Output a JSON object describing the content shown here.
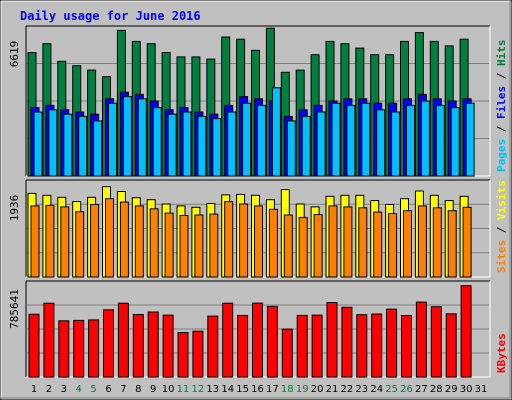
{
  "title": "Daily usage for June 2016",
  "colors": {
    "background": "#c0c0c0",
    "title": "#0000ff",
    "hits": "#008040",
    "files": "#0000ff",
    "pages": "#00c0ff",
    "visits": "#ffff00",
    "sites": "#ff8000",
    "kbytes": "#ff0000",
    "weekend_label": "#008040",
    "weekday_label": "#000000"
  },
  "chart_data": [
    {
      "type": "bar",
      "title": "Daily usage for June 2016",
      "ymax_label": "6619",
      "legend": [
        "Pages",
        "Files",
        "Hits"
      ],
      "categories": [
        "1",
        "2",
        "3",
        "4",
        "5",
        "6",
        "7",
        "8",
        "9",
        "10",
        "11",
        "12",
        "13",
        "14",
        "15",
        "16",
        "17",
        "18",
        "19",
        "20",
        "21",
        "22",
        "23",
        "24",
        "25",
        "26",
        "27",
        "28",
        "29",
        "30",
        "31"
      ],
      "weekend_days": [
        "4",
        "5",
        "11",
        "12",
        "18",
        "19",
        "25",
        "26"
      ],
      "ylim": [
        0,
        6619
      ],
      "series": [
        {
          "name": "Hits",
          "values": [
            5600,
            6000,
            5200,
            5000,
            4800,
            4500,
            6600,
            6100,
            6000,
            5600,
            5400,
            5400,
            5300,
            6300,
            6200,
            5700,
            6700,
            4700,
            4800,
            5500,
            6100,
            6000,
            5800,
            5500,
            5500,
            6100,
            6500,
            6100,
            5900,
            6200,
            null
          ]
        },
        {
          "name": "Files",
          "values": [
            3100,
            3200,
            3000,
            2900,
            2800,
            3500,
            3800,
            3700,
            3400,
            3000,
            3100,
            2900,
            2800,
            3200,
            3600,
            3500,
            3400,
            2700,
            3000,
            3200,
            3400,
            3500,
            3500,
            3300,
            3300,
            3500,
            3700,
            3500,
            3400,
            3500,
            null
          ]
        },
        {
          "name": "Pages",
          "values": [
            2900,
            3000,
            2800,
            2700,
            2500,
            3300,
            3600,
            3500,
            3100,
            2800,
            2900,
            2700,
            2600,
            2900,
            3300,
            3200,
            4000,
            2500,
            2700,
            2900,
            3300,
            3200,
            3300,
            3000,
            2900,
            3200,
            3400,
            3200,
            3100,
            3300,
            null
          ]
        }
      ]
    },
    {
      "type": "bar",
      "ymax_label": "1936",
      "legend": [
        "Sites",
        "Visits"
      ],
      "categories": [
        "1",
        "2",
        "3",
        "4",
        "5",
        "6",
        "7",
        "8",
        "9",
        "10",
        "11",
        "12",
        "13",
        "14",
        "15",
        "16",
        "17",
        "18",
        "19",
        "20",
        "21",
        "22",
        "23",
        "24",
        "25",
        "26",
        "27",
        "28",
        "29",
        "30",
        "31"
      ],
      "ylim": [
        0,
        1936
      ],
      "series": [
        {
          "name": "Visits",
          "values": [
            1740,
            1700,
            1660,
            1570,
            1660,
            1880,
            1780,
            1650,
            1610,
            1520,
            1480,
            1450,
            1530,
            1710,
            1720,
            1700,
            1610,
            1820,
            1520,
            1460,
            1680,
            1700,
            1700,
            1590,
            1510,
            1630,
            1790,
            1700,
            1590,
            1680,
            null
          ]
        },
        {
          "name": "Sites",
          "values": [
            1480,
            1490,
            1460,
            1360,
            1510,
            1630,
            1560,
            1480,
            1420,
            1330,
            1280,
            1290,
            1310,
            1570,
            1520,
            1480,
            1410,
            1290,
            1240,
            1300,
            1480,
            1460,
            1440,
            1350,
            1320,
            1380,
            1480,
            1440,
            1380,
            1450,
            null
          ]
        }
      ]
    },
    {
      "type": "bar",
      "ymax_label": "785641",
      "legend": [
        "KBytes"
      ],
      "categories": [
        "1",
        "2",
        "3",
        "4",
        "5",
        "6",
        "7",
        "8",
        "9",
        "10",
        "11",
        "12",
        "13",
        "14",
        "15",
        "16",
        "17",
        "18",
        "19",
        "20",
        "21",
        "22",
        "23",
        "24",
        "25",
        "26",
        "27",
        "28",
        "29",
        "30",
        "31"
      ],
      "ylim": [
        0,
        785641
      ],
      "series": [
        {
          "name": "KBytes",
          "values": [
            536000,
            630000,
            480000,
            483000,
            488000,
            574000,
            630000,
            534000,
            555000,
            529000,
            380000,
            391000,
            520000,
            630000,
            526000,
            631000,
            603000,
            409000,
            526000,
            529000,
            636000,
            595000,
            532000,
            538000,
            580000,
            525000,
            640000,
            600000,
            540000,
            780000,
            null
          ]
        }
      ]
    }
  ]
}
